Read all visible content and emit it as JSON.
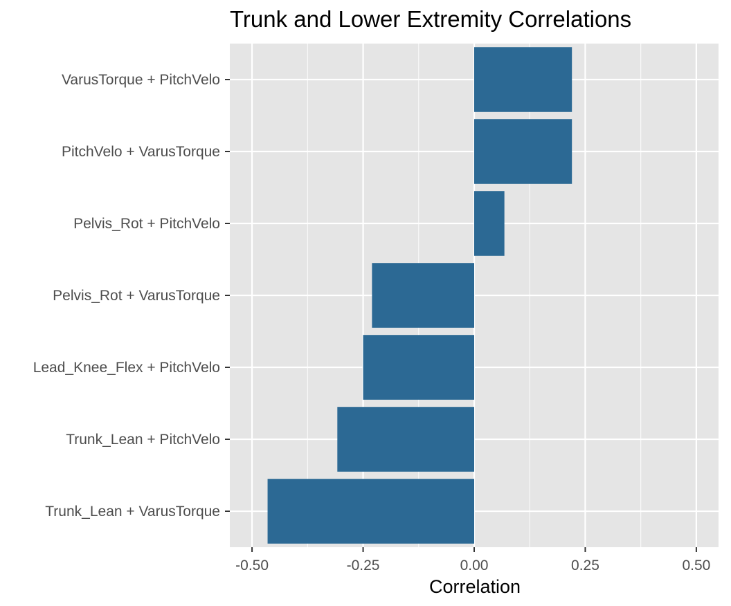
{
  "chart_data": {
    "type": "bar",
    "orientation": "horizontal",
    "title": "Trunk and Lower Extremity Correlations",
    "xlabel": "Correlation",
    "ylabel": "",
    "xlim": [
      -0.55,
      0.55
    ],
    "xticks": [
      -0.5,
      -0.25,
      0,
      0.25,
      0.5
    ],
    "xtick_labels": [
      "-0.50",
      "-0.25",
      "0.00",
      "0.25",
      "0.50"
    ],
    "categories": [
      "VarusTorque + PitchVelo",
      "PitchVelo + VarusTorque",
      "Pelvis_Rot + PitchVelo",
      "Pelvis_Rot + VarusTorque",
      "Lead_Knee_Flex + PitchVelo",
      "Trunk_Lean + PitchVelo",
      "Trunk_Lean + VarusTorque"
    ],
    "values": [
      0.22,
      0.22,
      0.068,
      -0.23,
      -0.25,
      -0.308,
      -0.465
    ],
    "grid": true,
    "legend": "none",
    "colors": {
      "bar": "#2c6994",
      "panel_background": "#e5e5e5",
      "grid": "#ffffff",
      "text": "#000000",
      "tick_text": "#4d4d4d",
      "tick_mark": "#333333"
    }
  }
}
